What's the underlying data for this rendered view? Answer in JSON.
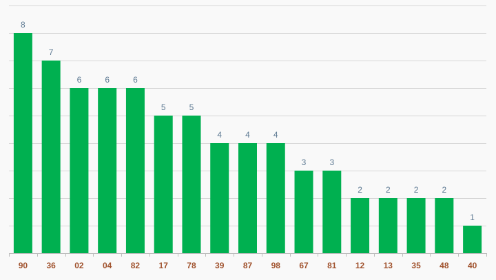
{
  "chart_data": {
    "type": "bar",
    "title": "",
    "xlabel": "",
    "ylabel": "",
    "categories": [
      "90",
      "36",
      "02",
      "04",
      "82",
      "17",
      "78",
      "39",
      "87",
      "98",
      "67",
      "81",
      "12",
      "13",
      "35",
      "48",
      "40"
    ],
    "values": [
      8,
      7,
      6,
      6,
      6,
      5,
      5,
      4,
      4,
      4,
      3,
      3,
      2,
      2,
      2,
      2,
      1
    ],
    "value_labels": [
      "8",
      "7",
      "6",
      "6",
      "6",
      "5",
      "5",
      "4",
      "4",
      "4",
      "3",
      "3",
      "2",
      "2",
      "2",
      "2",
      "1"
    ],
    "ylim": [
      0,
      9
    ],
    "grid": true,
    "legend": "none",
    "colors": {
      "bar": "#00b050",
      "value_label": "#5e7a93",
      "x_label": "#a0522d",
      "grid": "#d6d6d6",
      "background": "#f9f9f9"
    }
  }
}
